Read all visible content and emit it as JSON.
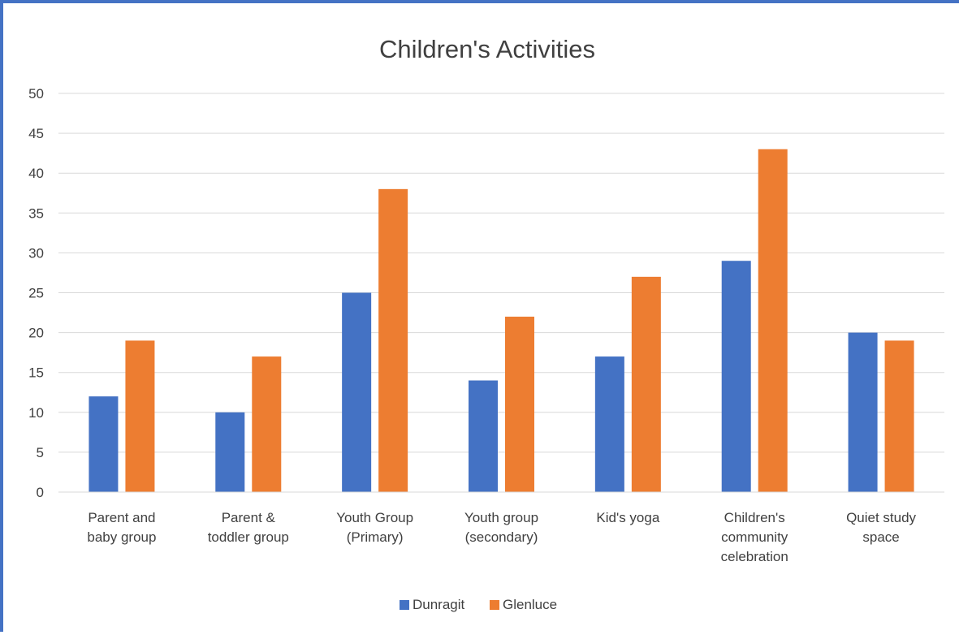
{
  "chart_data": {
    "type": "bar",
    "title": "Children's Activities",
    "xlabel": "",
    "ylabel": "",
    "categories": [
      [
        "Parent and",
        "baby group"
      ],
      [
        "Parent &",
        "toddler group"
      ],
      [
        "Youth Group",
        "(Primary)"
      ],
      [
        "Youth group",
        "(secondary)"
      ],
      [
        "Kid's yoga"
      ],
      [
        "Children's",
        "community",
        "celebration"
      ],
      [
        "Quiet study",
        "space"
      ]
    ],
    "series": [
      {
        "name": "Dunragit",
        "color": "#4472C4",
        "values": [
          12,
          10,
          25,
          14,
          17,
          29,
          20
        ]
      },
      {
        "name": "Glenluce",
        "color": "#ED7D31",
        "values": [
          19,
          17,
          38,
          22,
          27,
          43,
          19
        ]
      }
    ],
    "ylim": [
      0,
      50
    ],
    "yticks": [
      0,
      5,
      10,
      15,
      20,
      25,
      30,
      35,
      40,
      45,
      50
    ],
    "grid": true,
    "legend_position": "bottom",
    "frame_color": "#4472C4"
  }
}
